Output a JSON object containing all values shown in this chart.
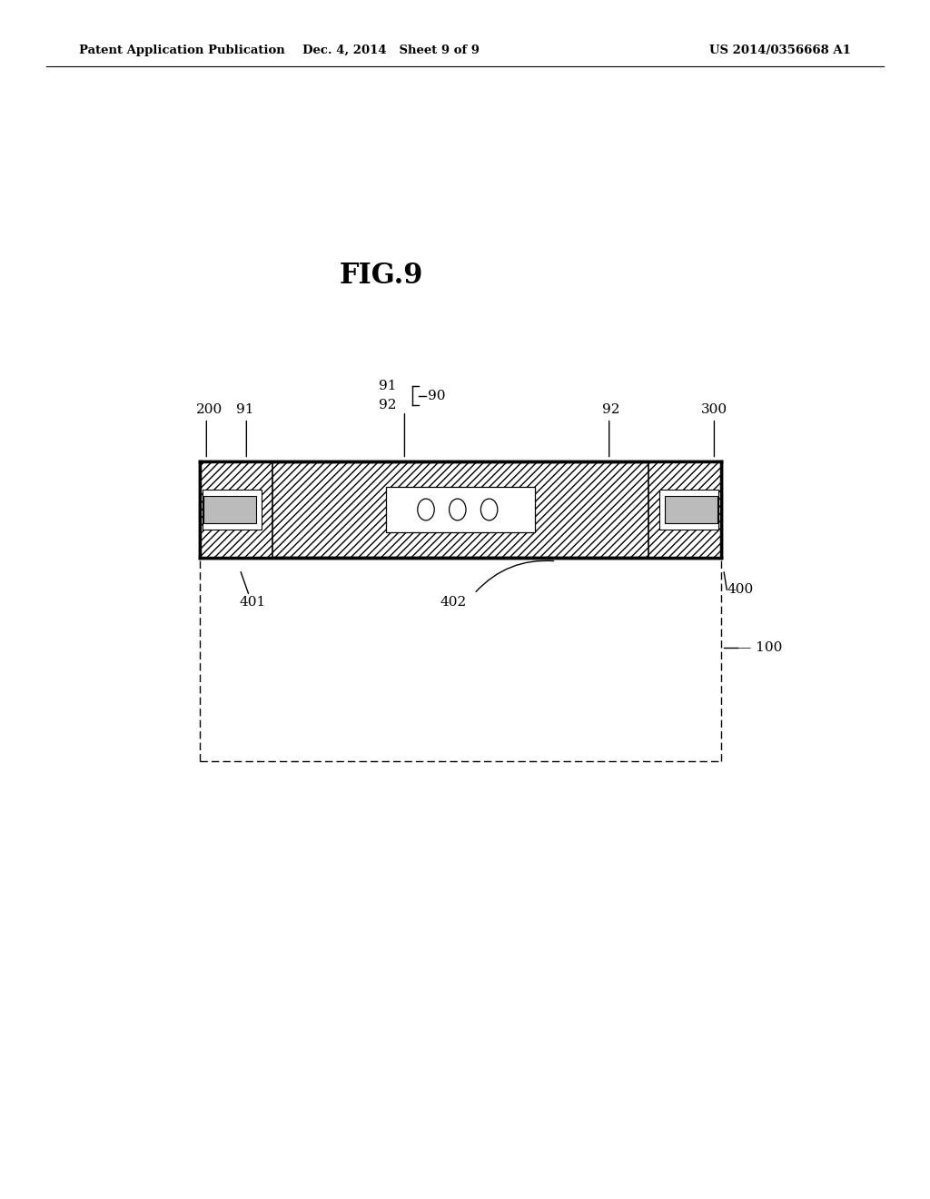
{
  "bg_color": "#ffffff",
  "header_left": "Patent Application Publication",
  "header_mid": "Dec. 4, 2014   Sheet 9 of 9",
  "header_right": "US 2014/0356668 A1",
  "fig_label": "FIG.9"
}
